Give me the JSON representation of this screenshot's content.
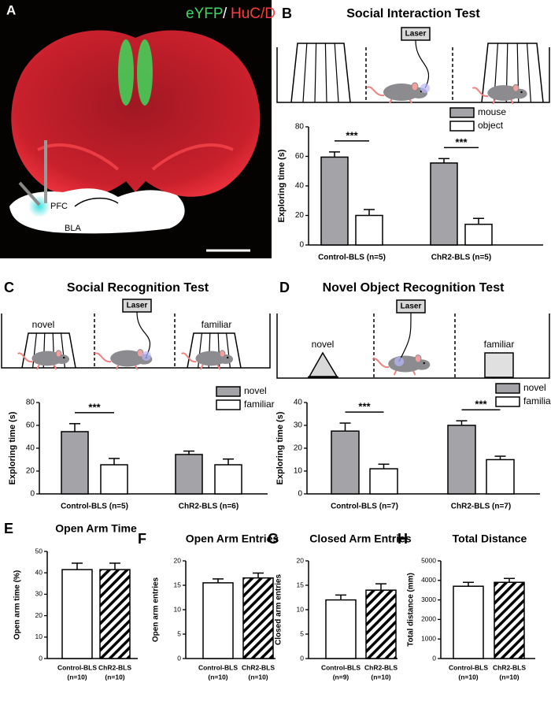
{
  "panel_a": {
    "letter": "A",
    "stain_1": "eYFP",
    "separator": "/",
    "stain_2": "HuC/D",
    "region_1": "PFC",
    "region_2": "BLA"
  },
  "chart_data": [
    {
      "type": "bar",
      "panel": "B",
      "title": "Social Interaction Test",
      "schematic_labels": [
        "Laser"
      ],
      "categories": [
        "Control-BLS (n=5)",
        "ChR2-BLS (n=5)"
      ],
      "y_label": "Exploring time (s)",
      "ylim": [
        0,
        80
      ],
      "yticks": [
        0,
        20,
        40,
        60,
        80
      ],
      "legend": "upper right",
      "series": [
        {
          "name": "mouse",
          "color": "#a3a3a8",
          "values": [
            59.5,
            55.5
          ],
          "errors": [
            3.5,
            3
          ]
        },
        {
          "name": "object",
          "color": "#ffffff",
          "values": [
            20,
            14
          ],
          "errors": [
            4,
            4
          ]
        }
      ],
      "significance": [
        "***",
        "***"
      ]
    },
    {
      "type": "bar",
      "panel": "C",
      "title": "Social Recognition Test",
      "schematic_labels": [
        "novel",
        "Laser",
        "familiar"
      ],
      "categories": [
        "Control-BLS (n=5)",
        "ChR2-BLS (n=6)"
      ],
      "y_label": "Exploring time (s)",
      "ylim": [
        0,
        80
      ],
      "yticks": [
        0,
        20,
        40,
        60,
        80
      ],
      "legend": "upper right",
      "series": [
        {
          "name": "novel",
          "color": "#a3a3a8",
          "values": [
            54.5,
            34.5
          ],
          "errors": [
            7,
            3
          ]
        },
        {
          "name": "familiar",
          "color": "#ffffff",
          "values": [
            25.5,
            25.5
          ],
          "errors": [
            5.5,
            5
          ]
        }
      ],
      "significance": [
        "***",
        null
      ]
    },
    {
      "type": "bar",
      "panel": "D",
      "title": "Novel Object Recognition Test",
      "schematic_labels": [
        "novel",
        "Laser",
        "familiar"
      ],
      "categories": [
        "Control-BLS (n=7)",
        "ChR2-BLS (n=7)"
      ],
      "y_label": "Exploring time (s)",
      "ylim": [
        0,
        40
      ],
      "yticks": [
        0,
        10,
        20,
        30,
        40
      ],
      "legend": "upper right",
      "series": [
        {
          "name": "novel",
          "color": "#a3a3a8",
          "values": [
            27.5,
            30
          ],
          "errors": [
            3.5,
            2
          ]
        },
        {
          "name": "familiar",
          "color": "#ffffff",
          "values": [
            11,
            15
          ],
          "errors": [
            2,
            1.5
          ]
        }
      ],
      "significance": [
        "***",
        "***"
      ]
    },
    {
      "type": "bar",
      "panel": "E",
      "title": "Open Arm Time",
      "y_label": "Open arm time (%)",
      "categories": [
        "Control-BLS",
        "ChR2-BLS"
      ],
      "category_counts": [
        "(n=10)",
        "(n=10)"
      ],
      "ylim": [
        0,
        50
      ],
      "yticks": [
        0,
        10,
        20,
        30,
        40,
        50
      ],
      "values": [
        41.5,
        41.5
      ],
      "errors": [
        3,
        3
      ],
      "color": "#ffffff",
      "hatched": [
        false,
        true
      ]
    },
    {
      "type": "bar",
      "panel": "F",
      "title": "Open Arm Entries",
      "y_label": "Open arm entries",
      "categories": [
        "Control-BLS",
        "ChR2-BLS"
      ],
      "category_counts": [
        "(n=10)",
        "(n=10)"
      ],
      "ylim": [
        0,
        20
      ],
      "yticks": [
        0,
        5,
        10,
        15,
        20
      ],
      "values": [
        15.5,
        16.5
      ],
      "errors": [
        0.8,
        1
      ],
      "color": "#ffffff",
      "hatched": [
        false,
        true
      ]
    },
    {
      "type": "bar",
      "panel": "G",
      "title": "Closed Arm Entries",
      "y_label": "Closed arm entries",
      "categories": [
        "Control-BLS",
        "ChR2-BLS"
      ],
      "category_counts": [
        "(n=9)",
        "(n=10)"
      ],
      "ylim": [
        0,
        20
      ],
      "yticks": [
        0,
        5,
        10,
        15,
        20
      ],
      "values": [
        12,
        14
      ],
      "errors": [
        1,
        1.3
      ],
      "color": "#ffffff",
      "hatched": [
        false,
        true
      ]
    },
    {
      "type": "bar",
      "panel": "H",
      "title": "Total Distance",
      "y_label": "Total distance (mm)",
      "categories": [
        "Control-BLS",
        "ChR2-BLS"
      ],
      "category_counts": [
        "(n=10)",
        "(n=10)"
      ],
      "ylim": [
        0,
        5000
      ],
      "yticks": [
        0,
        1000,
        2000,
        3000,
        4000,
        5000
      ],
      "values": [
        3700,
        3900
      ],
      "errors": [
        200,
        200
      ],
      "color": "#ffffff",
      "hatched": [
        false,
        true
      ]
    }
  ]
}
